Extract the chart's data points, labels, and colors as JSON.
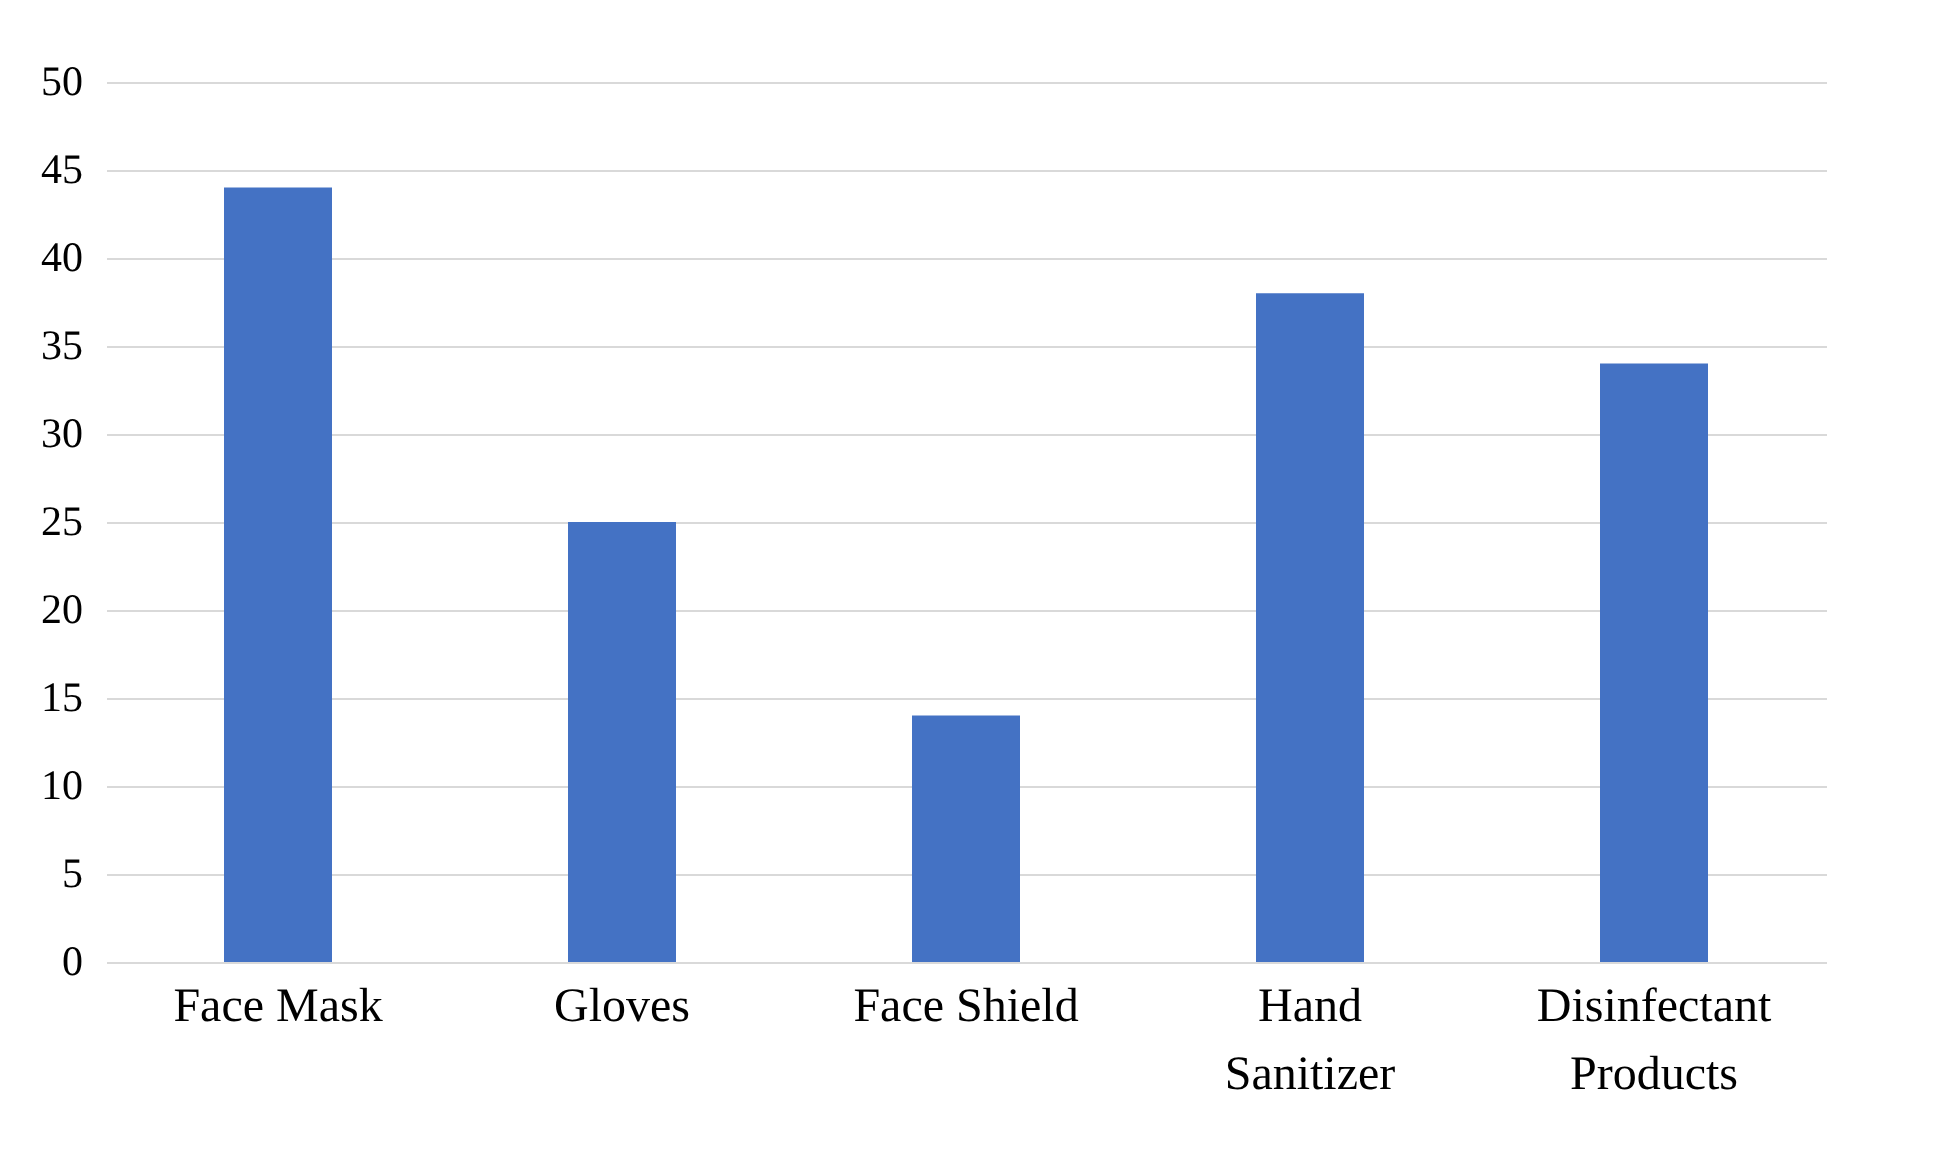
{
  "chart_data": {
    "type": "bar",
    "categories": [
      "Face Mask",
      "Gloves",
      "Face Shield",
      "Hand Sanitizer",
      "Disinfectant Products"
    ],
    "values": [
      44,
      25,
      14,
      38,
      34
    ],
    "color": "#4472c4",
    "ylim": [
      0,
      50
    ],
    "yticks": [
      0,
      5,
      10,
      15,
      20,
      25,
      30,
      35,
      40,
      45,
      50
    ],
    "grid": "y"
  }
}
